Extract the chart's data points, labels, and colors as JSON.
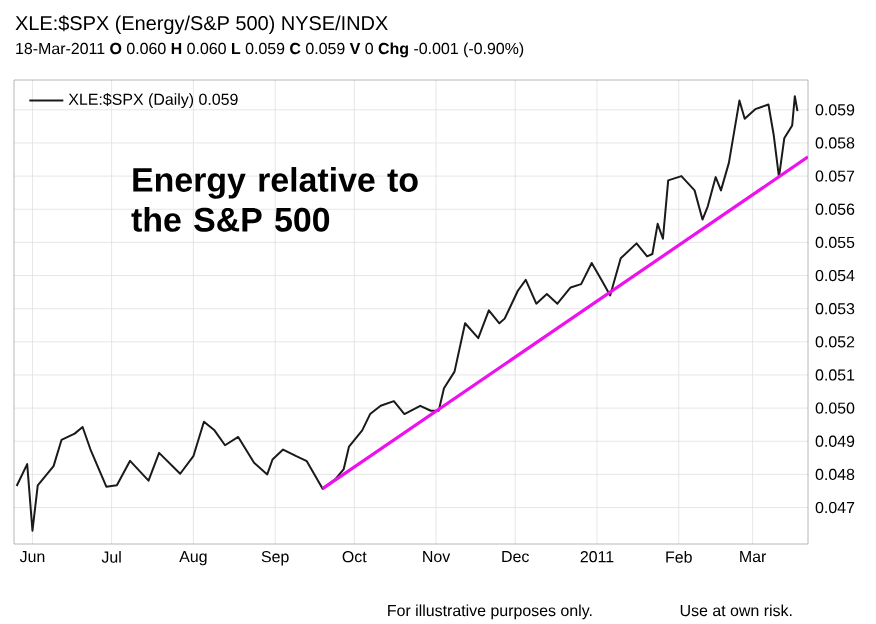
{
  "chart_data": {
    "type": "line",
    "title": "XLE:$SPX (Energy/S&P 500) NYSE/INDX",
    "subtitle": "18-Mar-2011 **O** 0.060 **H** 0.060 **L** 0.059 **C** 0.059 **V** 0 **Chg** -0.001 (-0.90%)",
    "annotations": [
      "Energy relative to the S&P 500",
      "For illustrative purposes only.",
      "Use at own risk."
    ],
    "xlim": [
      "2010-05-25",
      "2011-03-22"
    ],
    "xticks": [
      {
        "value": "2010-06-01",
        "label": "Jun"
      },
      {
        "value": "2010-07-01",
        "label": "Jul"
      },
      {
        "value": "2010-08-01",
        "label": "Aug"
      },
      {
        "value": "2010-09-01",
        "label": "Sep"
      },
      {
        "value": "2010-10-01",
        "label": "Oct"
      },
      {
        "value": "2010-11-01",
        "label": "Nov"
      },
      {
        "value": "2010-12-01",
        "label": "Dec"
      },
      {
        "value": "2011-01-01",
        "label": "2011"
      },
      {
        "value": "2011-02-01",
        "label": "Feb"
      },
      {
        "value": "2011-03-01",
        "label": "Mar"
      }
    ],
    "ylim": [
      0.0459,
      0.0599
    ],
    "yticks": [
      0.047,
      0.048,
      0.049,
      {
        "value": 0.05,
        "label": "0.050"
      },
      0.051,
      0.052,
      0.053,
      0.054,
      0.055,
      0.056,
      0.057,
      0.058,
      0.059
    ],
    "grid": true,
    "legend": "top left",
    "marker": "none",
    "line_style": "solid",
    "series": [
      {
        "name": "XLE:$SPX (Daily) 0.059",
        "color": "#1a1a1a",
        "x": [
          "2010-05-26",
          "2010-05-30",
          "2010-06-01",
          "2010-06-03",
          "2010-06-09",
          "2010-06-12",
          "2010-06-17",
          "2010-06-20",
          "2010-06-23",
          "2010-06-29",
          "2010-07-03",
          "2010-07-08",
          "2010-07-15",
          "2010-07-19",
          "2010-07-27",
          "2010-08-01",
          "2010-08-05",
          "2010-08-09",
          "2010-08-13",
          "2010-08-18",
          "2010-08-24",
          "2010-08-29",
          "2010-08-31",
          "2010-09-04",
          "2010-09-09",
          "2010-09-13",
          "2010-09-19",
          "2010-09-24",
          "2010-09-27",
          "2010-09-29",
          "2010-10-04",
          "2010-10-07",
          "2010-10-11",
          "2010-10-16",
          "2010-10-20",
          "2010-10-26",
          "2010-10-30",
          "2010-11-02",
          "2010-11-04",
          "2010-11-08",
          "2010-11-12",
          "2010-11-17",
          "2010-11-21",
          "2010-11-25",
          "2010-11-27",
          "2010-12-02",
          "2010-12-05",
          "2010-12-09",
          "2010-12-13",
          "2010-12-17",
          "2010-12-22",
          "2010-12-26",
          "2010-12-30",
          "2011-01-03",
          "2011-01-06",
          "2011-01-10",
          "2011-01-16",
          "2011-01-20",
          "2011-01-22",
          "2011-01-24",
          "2011-01-26",
          "2011-01-28",
          "2011-02-02",
          "2011-02-07",
          "2011-02-10",
          "2011-02-12",
          "2011-02-15",
          "2011-02-17",
          "2011-02-20",
          "2011-02-24",
          "2011-02-26",
          "2011-03-02",
          "2011-03-07",
          "2011-03-09",
          "2011-03-11",
          "2011-03-13",
          "2011-03-16",
          "2011-03-17",
          "2011-03-18"
        ],
        "values": [
          0.04765,
          0.04831,
          0.0463,
          0.04767,
          0.04825,
          0.04904,
          0.04923,
          0.04943,
          0.04875,
          0.04763,
          0.04767,
          0.04841,
          0.04781,
          0.04865,
          0.04802,
          0.04855,
          0.04959,
          0.04933,
          0.04888,
          0.04913,
          0.04835,
          0.048,
          0.04845,
          0.04875,
          0.04855,
          0.0484,
          0.04757,
          0.04787,
          0.04816,
          0.04884,
          0.04933,
          0.04982,
          0.05007,
          0.05021,
          0.04982,
          0.05007,
          0.04992,
          0.04992,
          0.0506,
          0.0511,
          0.05256,
          0.05211,
          0.05295,
          0.05256,
          0.0527,
          0.05354,
          0.05387,
          0.05315,
          0.05344,
          0.05315,
          0.05364,
          0.05374,
          0.05438,
          0.05383,
          0.0534,
          0.05452,
          0.05497,
          0.05458,
          0.05465,
          0.05556,
          0.05511,
          0.05687,
          0.057,
          0.05657,
          0.05569,
          0.05609,
          0.05697,
          0.05657,
          0.0574,
          0.05928,
          0.05873,
          0.05902,
          0.05916,
          0.05824,
          0.05697,
          0.05814,
          0.05853,
          0.05941,
          0.05896
        ]
      },
      {
        "color": "#ee11ee",
        "x": [
          "2010-09-19",
          "2011-03-22"
        ],
        "values": [
          0.04757,
          0.05758
        ]
      }
    ]
  }
}
